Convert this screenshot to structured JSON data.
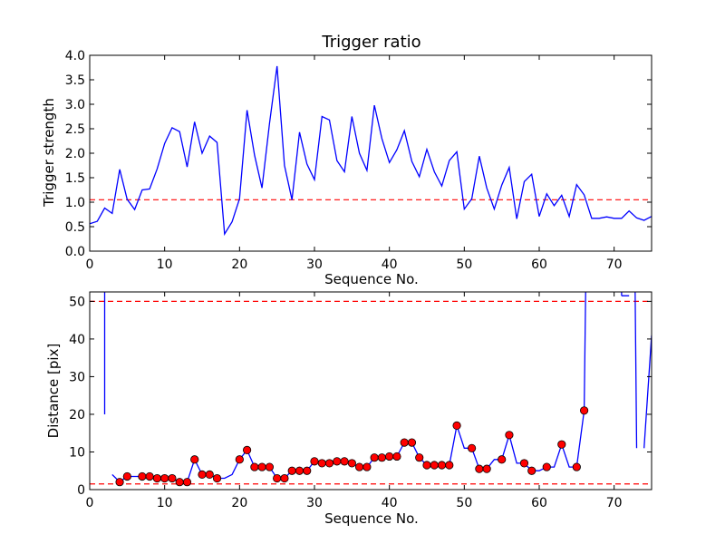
{
  "chart_data": [
    {
      "type": "line",
      "title": "Trigger ratio",
      "xlabel": "Sequence No.",
      "ylabel": "Trigger strength",
      "xlim": [
        0,
        75
      ],
      "ylim": [
        0,
        4.0
      ],
      "xticks": [
        "0",
        "10",
        "20",
        "30",
        "40",
        "50",
        "60",
        "70"
      ],
      "yticks": [
        "0.0",
        "0.5",
        "1.0",
        "1.5",
        "2.0",
        "2.5",
        "3.0",
        "3.5",
        "4.0"
      ],
      "line_color": "#0000ff",
      "threshold": 1.05,
      "threshold_color": "#ff0000",
      "x": [
        0,
        1,
        2,
        3,
        4,
        5,
        6,
        7,
        8,
        9,
        10,
        11,
        12,
        13,
        14,
        15,
        16,
        17,
        18,
        19,
        20,
        21,
        22,
        23,
        24,
        25,
        26,
        27,
        28,
        29,
        30,
        31,
        32,
        33,
        34,
        35,
        36,
        37,
        38,
        39,
        40,
        41,
        42,
        43,
        44,
        45,
        46,
        47,
        48,
        49,
        50,
        51,
        52,
        53,
        54,
        55,
        56,
        57,
        58,
        59,
        60,
        61,
        62,
        63,
        64,
        65,
        66,
        67,
        68,
        69,
        70,
        71,
        72,
        73,
        74,
        75
      ],
      "y": [
        0.56,
        0.61,
        0.88,
        0.77,
        1.67,
        1.06,
        0.85,
        1.25,
        1.27,
        1.68,
        2.2,
        2.52,
        2.44,
        1.72,
        2.64,
        2.0,
        2.35,
        2.22,
        0.35,
        0.6,
        1.07,
        2.88,
        1.96,
        1.29,
        2.61,
        3.78,
        1.75,
        1.05,
        2.43,
        1.78,
        1.46,
        2.75,
        2.68,
        1.85,
        1.62,
        2.75,
        2.0,
        1.65,
        2.98,
        2.3,
        1.81,
        2.07,
        2.46,
        1.83,
        1.52,
        2.08,
        1.62,
        1.33,
        1.85,
        2.03,
        0.86,
        1.07,
        1.94,
        1.29,
        0.86,
        1.35,
        1.71,
        0.66,
        1.42,
        1.57,
        0.71,
        1.17,
        0.93,
        1.14,
        0.71,
        1.36,
        1.15,
        0.67,
        0.67,
        0.7,
        0.67,
        0.67,
        0.82,
        0.68,
        0.63,
        0.71
      ]
    },
    {
      "type": "line",
      "title": "",
      "xlabel": "Sequence No.",
      "ylabel": "Distance [pix]",
      "xlim": [
        0,
        75
      ],
      "ylim": [
        0,
        52.5
      ],
      "xticks": [
        "0",
        "10",
        "20",
        "30",
        "40",
        "50",
        "60",
        "70"
      ],
      "yticks": [
        "0",
        "10",
        "20",
        "30",
        "40",
        "50"
      ],
      "line_color": "#0000ff",
      "marker_color": "#ff0000",
      "thresholds": [
        50,
        1.5
      ],
      "threshold_color": "#ff0000",
      "x": [
        2,
        3,
        4,
        5,
        6,
        7,
        8,
        9,
        10,
        11,
        12,
        13,
        14,
        15,
        16,
        17,
        18,
        19,
        20,
        21,
        22,
        23,
        24,
        25,
        26,
        27,
        28,
        29,
        30,
        31,
        32,
        33,
        34,
        35,
        36,
        37,
        38,
        39,
        40,
        41,
        42,
        43,
        44,
        45,
        46,
        47,
        48,
        49,
        50,
        51,
        52,
        53,
        54,
        55,
        56,
        57,
        58,
        59,
        60,
        61,
        62,
        63,
        64,
        65,
        66,
        67,
        68,
        69,
        70,
        71,
        72,
        73,
        74,
        75
      ],
      "y": [
        null,
        4.0,
        2.0,
        3.5,
        3.5,
        3.5,
        3.5,
        3.0,
        3.0,
        3.0,
        2.0,
        2.0,
        8.0,
        4.0,
        4.0,
        3.0,
        3.0,
        4.0,
        8.0,
        10.5,
        6.0,
        6.0,
        6.0,
        3.0,
        3.0,
        5.0,
        5.0,
        5.0,
        7.5,
        7.0,
        7.0,
        7.5,
        7.5,
        7.0,
        6.0,
        6.0,
        8.5,
        8.5,
        8.8,
        8.8,
        12.5,
        12.5,
        8.5,
        6.5,
        6.5,
        6.5,
        6.5,
        17.0,
        11.0,
        11.0,
        5.5,
        5.5,
        8.0,
        8.0,
        14.5,
        7.0,
        7.0,
        5.0,
        5.0,
        6.0,
        6.0,
        12.0,
        6.0,
        6.0,
        21.0,
        null,
        null,
        null,
        null,
        51.5,
        51.5,
        null,
        11.0,
        41.0
      ],
      "points_x": [
        4,
        5,
        7,
        8,
        9,
        10,
        11,
        12,
        13,
        14,
        15,
        16,
        17,
        20,
        21,
        22,
        23,
        24,
        25,
        26,
        27,
        28,
        29,
        30,
        31,
        32,
        33,
        34,
        35,
        36,
        37,
        38,
        39,
        40,
        41,
        42,
        43,
        44,
        45,
        46,
        47,
        48,
        49,
        51,
        52,
        53,
        55,
        56,
        58,
        59,
        61,
        63,
        65,
        66
      ],
      "points_y": [
        2.0,
        3.5,
        3.5,
        3.5,
        3.0,
        3.0,
        3.0,
        2.0,
        2.0,
        8.0,
        4.0,
        4.0,
        3.0,
        8.0,
        10.5,
        6.0,
        6.0,
        6.0,
        3.0,
        3.0,
        5.0,
        5.0,
        5.0,
        7.5,
        7.0,
        7.0,
        7.5,
        7.5,
        7.0,
        6.0,
        6.0,
        8.5,
        8.5,
        8.8,
        8.8,
        12.5,
        12.5,
        8.5,
        6.5,
        6.5,
        6.5,
        6.5,
        17.0,
        11.0,
        5.5,
        5.5,
        8.0,
        14.5,
        7.0,
        5.0,
        6.0,
        12.0,
        6.0,
        21.0
      ]
    }
  ]
}
